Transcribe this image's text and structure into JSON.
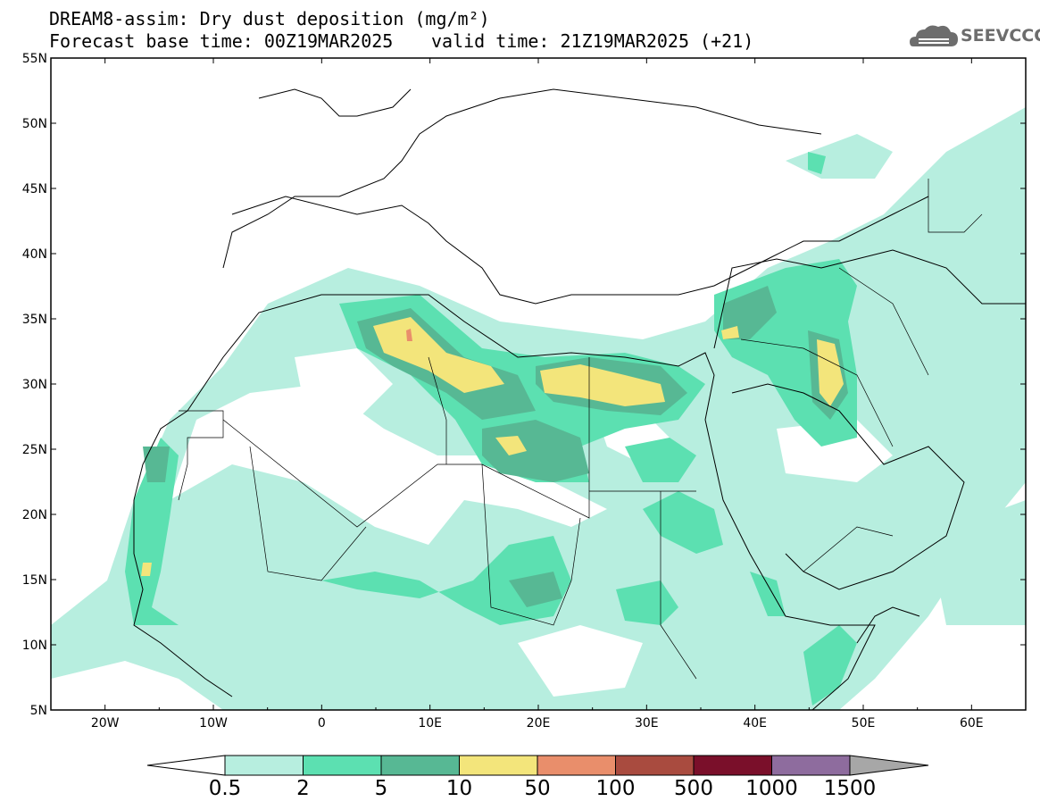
{
  "title": {
    "line1": "DREAM8-assim: Dry dust deposition (mg/m²)",
    "line2": "Forecast base time: 00Z19MAR2025",
    "valid": "valid time: 21Z19MAR2025 (+21)"
  },
  "logo": {
    "text": "SEEVCCC",
    "icon": "cloud-logo-icon"
  },
  "map": {
    "region": "North Africa and Middle East",
    "lat_range": [
      5,
      55
    ],
    "lon_range": [
      -25,
      65
    ],
    "lat_ticks": [
      "5N",
      "10N",
      "15N",
      "20N",
      "25N",
      "30N",
      "35N",
      "40N",
      "45N",
      "50N",
      "55N"
    ],
    "lon_ticks": [
      "20W",
      "10W",
      "0",
      "10E",
      "20E",
      "30E",
      "40E",
      "50E",
      "60E"
    ]
  },
  "colorbar": {
    "labels": [
      "0.5",
      "2",
      "5",
      "10",
      "50",
      "100",
      "500",
      "1000",
      "1500"
    ],
    "colors": [
      "#ffffff",
      "#b7eedf",
      "#5ce0b1",
      "#57b894",
      "#f3e57b",
      "#e98e6b",
      "#a94b3f",
      "#7a0f2a",
      "#8e6c9e",
      "#a7a7a7"
    ]
  }
}
